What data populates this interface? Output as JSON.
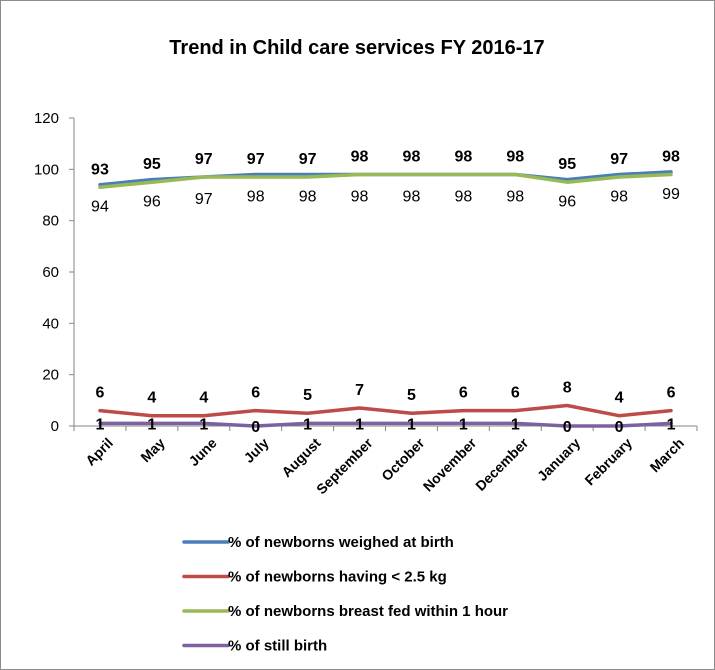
{
  "chart_data": {
    "type": "line",
    "title": "Trend in Child care services FY 2016-17",
    "categories": [
      "April",
      "May",
      "June",
      "July",
      "August",
      "September",
      "October",
      "November",
      "December",
      "January",
      "February",
      "March"
    ],
    "ylim": [
      0,
      120
    ],
    "yticks": [
      "0",
      "20",
      "40",
      "60",
      "80",
      "100",
      "120"
    ],
    "grid": false,
    "legend_position": "bottom",
    "series": [
      {
        "name": "% of newborns weighed at birth",
        "color": "#4a7ebb",
        "values": [
          94,
          96,
          97,
          98,
          98,
          98,
          98,
          98,
          98,
          96,
          98,
          99
        ],
        "labels": [
          "94",
          "96",
          "97",
          "98",
          "98",
          "98",
          "98",
          "98",
          "98",
          "96",
          "98",
          "99"
        ],
        "label_style": "normal",
        "label_placement": "below"
      },
      {
        "name": "% of newborns having < 2.5 kg",
        "color": "#be4b48",
        "values": [
          6,
          4,
          4,
          6,
          5,
          7,
          5,
          6,
          6,
          8,
          4,
          6
        ],
        "labels": [
          "6",
          "4",
          "4",
          "6",
          "5",
          "7",
          "5",
          "6",
          "6",
          "8",
          "4",
          "6"
        ],
        "label_style": "bold",
        "label_placement": "above"
      },
      {
        "name": "% of newborns breast fed within 1 hour",
        "color": "#98b954",
        "values": [
          93,
          95,
          97,
          97,
          97,
          98,
          98,
          98,
          98,
          95,
          97,
          98
        ],
        "labels": [
          "93",
          "95",
          "97",
          "97",
          "97",
          "98",
          "98",
          "98",
          "98",
          "95",
          "97",
          "98"
        ],
        "label_style": "bold",
        "label_placement": "above"
      },
      {
        "name": "% of still birth",
        "color": "#7d60a0",
        "values": [
          1,
          1,
          1,
          0,
          1,
          1,
          1,
          1,
          1,
          0,
          0,
          1
        ],
        "labels": [
          "1",
          "1",
          "1",
          "0",
          "1",
          "1",
          "1",
          "1",
          "1",
          "0",
          "0",
          "1"
        ],
        "label_style": "bold",
        "label_placement": "center"
      }
    ]
  }
}
